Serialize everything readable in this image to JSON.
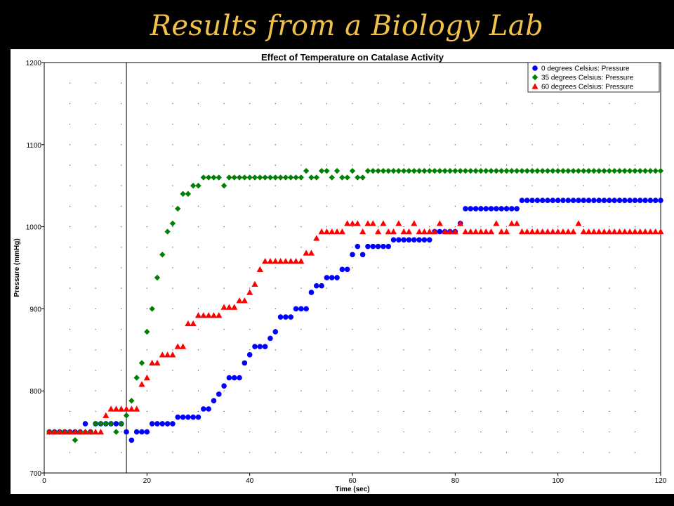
{
  "slide": {
    "title": "Results from a Biology Lab"
  },
  "chart_data": {
    "type": "scatter",
    "title": "Effect of Temperature on Catalase Activity",
    "xlabel": "Time (sec)",
    "ylabel": "Pressure (mmHg)",
    "xlim": [
      0,
      120
    ],
    "ylim": [
      700,
      1200
    ],
    "xticks": [
      0,
      20,
      40,
      60,
      80,
      100,
      120
    ],
    "yticks": [
      700,
      800,
      900,
      1000,
      1100,
      1200
    ],
    "grid": "dotted",
    "legend": "top-right",
    "marker_line_x": 16,
    "series": [
      {
        "name": "0 degrees Celsius: Pressure",
        "color": "#0000ff",
        "marker": "circle",
        "x": [
          1,
          2,
          3,
          4,
          5,
          6,
          7,
          8,
          9,
          10,
          11,
          12,
          13,
          14,
          15,
          16,
          17,
          18,
          19,
          20,
          21,
          22,
          23,
          24,
          25,
          26,
          27,
          28,
          29,
          30,
          31,
          32,
          33,
          34,
          35,
          36,
          37,
          38,
          39,
          40,
          41,
          42,
          43,
          44,
          45,
          46,
          47,
          48,
          49,
          50,
          51,
          52,
          53,
          54,
          55,
          56,
          57,
          58,
          59,
          60,
          61,
          62,
          63,
          64,
          65,
          66,
          67,
          68,
          69,
          70,
          71,
          72,
          73,
          74,
          75,
          76,
          77,
          78,
          79,
          80,
          81,
          82,
          83,
          84,
          85,
          86,
          87,
          88,
          89,
          90,
          91,
          92,
          93,
          94,
          95,
          96,
          97,
          98,
          99,
          100,
          101,
          102,
          103,
          104,
          105,
          106,
          107,
          108,
          109,
          110,
          111,
          112,
          113,
          114,
          115,
          116,
          117,
          118,
          119,
          120
        ],
        "y": [
          750,
          750,
          750,
          750,
          750,
          750,
          750,
          760,
          750,
          760,
          760,
          760,
          760,
          760,
          760,
          750,
          740,
          750,
          750,
          750,
          760,
          760,
          760,
          760,
          760,
          768,
          768,
          768,
          768,
          768,
          778,
          778,
          788,
          796,
          806,
          816,
          816,
          816,
          834,
          844,
          854,
          854,
          854,
          864,
          872,
          890,
          890,
          890,
          900,
          900,
          900,
          920,
          928,
          928,
          938,
          938,
          938,
          948,
          948,
          966,
          976,
          966,
          976,
          976,
          976,
          976,
          976,
          984,
          984,
          984,
          984,
          984,
          984,
          984,
          984,
          994,
          994,
          994,
          994,
          994,
          1004,
          1022,
          1022,
          1022,
          1022,
          1022,
          1022,
          1022,
          1022,
          1022,
          1022,
          1022,
          1032,
          1032,
          1032,
          1032,
          1032,
          1032,
          1032,
          1032,
          1032,
          1032,
          1032,
          1032,
          1032,
          1032,
          1032,
          1032,
          1032,
          1032,
          1032,
          1032,
          1032,
          1032,
          1032,
          1032,
          1032,
          1032,
          1032,
          1032
        ]
      },
      {
        "name": "35 degrees Celsius: Pressure",
        "color": "#008000",
        "marker": "diamond",
        "x": [
          1,
          2,
          3,
          4,
          5,
          6,
          7,
          8,
          9,
          10,
          11,
          12,
          13,
          14,
          15,
          16,
          17,
          18,
          19,
          20,
          21,
          22,
          23,
          24,
          25,
          26,
          27,
          28,
          29,
          30,
          31,
          32,
          33,
          34,
          35,
          36,
          37,
          38,
          39,
          40,
          41,
          42,
          43,
          44,
          45,
          46,
          47,
          48,
          49,
          50,
          51,
          52,
          53,
          54,
          55,
          56,
          57,
          58,
          59,
          60,
          61,
          62,
          63,
          64,
          65,
          66,
          67,
          68,
          69,
          70,
          71,
          72,
          73,
          74,
          75,
          76,
          77,
          78,
          79,
          80,
          81,
          82,
          83,
          84,
          85,
          86,
          87,
          88,
          89,
          90,
          91,
          92,
          93,
          94,
          95,
          96,
          97,
          98,
          99,
          100,
          101,
          102,
          103,
          104,
          105,
          106,
          107,
          108,
          109,
          110,
          111,
          112,
          113,
          114,
          115,
          116,
          117,
          118,
          119,
          120
        ],
        "y": [
          750,
          750,
          750,
          750,
          750,
          740,
          750,
          750,
          750,
          760,
          760,
          760,
          760,
          750,
          760,
          770,
          788,
          816,
          834,
          872,
          900,
          938,
          966,
          994,
          1004,
          1022,
          1040,
          1040,
          1050,
          1050,
          1060,
          1060,
          1060,
          1060,
          1050,
          1060,
          1060,
          1060,
          1060,
          1060,
          1060,
          1060,
          1060,
          1060,
          1060,
          1060,
          1060,
          1060,
          1060,
          1060,
          1068,
          1060,
          1060,
          1068,
          1068,
          1060,
          1068,
          1060,
          1060,
          1068,
          1060,
          1060,
          1068,
          1068,
          1068,
          1068,
          1068,
          1068,
          1068,
          1068,
          1068,
          1068,
          1068,
          1068,
          1068,
          1068,
          1068,
          1068,
          1068,
          1068,
          1068,
          1068,
          1068,
          1068,
          1068,
          1068,
          1068,
          1068,
          1068,
          1068,
          1068,
          1068,
          1068,
          1068,
          1068,
          1068,
          1068,
          1068,
          1068,
          1068,
          1068,
          1068,
          1068,
          1068,
          1068,
          1068,
          1068,
          1068,
          1068,
          1068,
          1068,
          1068,
          1068,
          1068,
          1068,
          1068,
          1068,
          1068,
          1068,
          1068
        ]
      },
      {
        "name": "60 degrees Celsius: Pressure",
        "color": "#ff0000",
        "marker": "triangle",
        "x": [
          1,
          2,
          3,
          4,
          5,
          6,
          7,
          8,
          9,
          10,
          11,
          12,
          13,
          14,
          15,
          16,
          17,
          18,
          19,
          20,
          21,
          22,
          23,
          24,
          25,
          26,
          27,
          28,
          29,
          30,
          31,
          32,
          33,
          34,
          35,
          36,
          37,
          38,
          39,
          40,
          41,
          42,
          43,
          44,
          45,
          46,
          47,
          48,
          49,
          50,
          51,
          52,
          53,
          54,
          55,
          56,
          57,
          58,
          59,
          60,
          61,
          62,
          63,
          64,
          65,
          66,
          67,
          68,
          69,
          70,
          71,
          72,
          73,
          74,
          75,
          76,
          77,
          78,
          79,
          80,
          81,
          82,
          83,
          84,
          85,
          86,
          87,
          88,
          89,
          90,
          91,
          92,
          93,
          94,
          95,
          96,
          97,
          98,
          99,
          100,
          101,
          102,
          103,
          104,
          105,
          106,
          107,
          108,
          109,
          110,
          111,
          112,
          113,
          114,
          115,
          116,
          117,
          118,
          119,
          120
        ],
        "y": [
          750,
          750,
          750,
          750,
          750,
          750,
          750,
          750,
          750,
          750,
          750,
          770,
          778,
          778,
          778,
          778,
          778,
          778,
          808,
          816,
          834,
          834,
          844,
          844,
          844,
          854,
          854,
          882,
          882,
          892,
          892,
          892,
          892,
          892,
          902,
          902,
          902,
          910,
          910,
          920,
          930,
          948,
          958,
          958,
          958,
          958,
          958,
          958,
          958,
          958,
          968,
          968,
          986,
          994,
          994,
          994,
          994,
          994,
          1004,
          1004,
          1004,
          994,
          1004,
          1004,
          994,
          1004,
          994,
          994,
          1004,
          994,
          994,
          1004,
          994,
          994,
          994,
          994,
          1004,
          994,
          994,
          994,
          1004,
          994,
          994,
          994,
          994,
          994,
          994,
          1004,
          994,
          994,
          1004,
          1004,
          994,
          994,
          994,
          994,
          994,
          994,
          994,
          994,
          994,
          994,
          994,
          1004,
          994,
          994,
          994,
          994,
          994,
          994,
          994,
          994,
          994,
          994,
          994,
          994,
          994,
          994,
          994,
          994
        ]
      }
    ]
  }
}
